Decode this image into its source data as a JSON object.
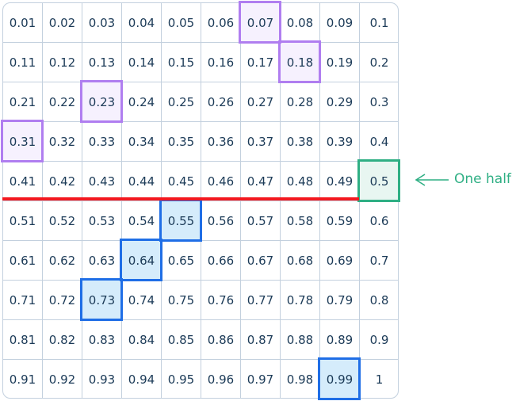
{
  "grid": {
    "rows": [
      [
        "0.01",
        "0.02",
        "0.03",
        "0.04",
        "0.05",
        "0.06",
        "0.07",
        "0.08",
        "0.09",
        "0.1"
      ],
      [
        "0.11",
        "0.12",
        "0.13",
        "0.14",
        "0.15",
        "0.16",
        "0.17",
        "0.18",
        "0.19",
        "0.2"
      ],
      [
        "0.21",
        "0.22",
        "0.23",
        "0.24",
        "0.25",
        "0.26",
        "0.27",
        "0.28",
        "0.29",
        "0.3"
      ],
      [
        "0.31",
        "0.32",
        "0.33",
        "0.34",
        "0.35",
        "0.36",
        "0.37",
        "0.38",
        "0.39",
        "0.4"
      ],
      [
        "0.41",
        "0.42",
        "0.43",
        "0.44",
        "0.45",
        "0.46",
        "0.47",
        "0.48",
        "0.49",
        "0.5"
      ],
      [
        "0.51",
        "0.52",
        "0.53",
        "0.54",
        "0.55",
        "0.56",
        "0.57",
        "0.58",
        "0.59",
        "0.6"
      ],
      [
        "0.61",
        "0.62",
        "0.63",
        "0.64",
        "0.65",
        "0.66",
        "0.67",
        "0.68",
        "0.69",
        "0.7"
      ],
      [
        "0.71",
        "0.72",
        "0.73",
        "0.74",
        "0.75",
        "0.76",
        "0.77",
        "0.78",
        "0.79",
        "0.8"
      ],
      [
        "0.81",
        "0.82",
        "0.83",
        "0.84",
        "0.85",
        "0.86",
        "0.87",
        "0.88",
        "0.89",
        "0.9"
      ],
      [
        "0.91",
        "0.92",
        "0.93",
        "0.94",
        "0.95",
        "0.96",
        "0.97",
        "0.98",
        "0.99",
        "1"
      ]
    ],
    "highlights": [
      {
        "value": "0.07",
        "group": "purple"
      },
      {
        "value": "0.18",
        "group": "purple"
      },
      {
        "value": "0.23",
        "group": "purple"
      },
      {
        "value": "0.31",
        "group": "purple"
      },
      {
        "value": "0.5",
        "group": "green"
      },
      {
        "value": "0.55",
        "group": "blue"
      },
      {
        "value": "0.64",
        "group": "blue"
      },
      {
        "value": "0.73",
        "group": "blue"
      },
      {
        "value": "0.99",
        "group": "blue"
      }
    ]
  },
  "colors": {
    "purple": {
      "border": "#b07ef0",
      "fill": "#f6f1fe"
    },
    "green": {
      "border": "#2faf84",
      "fill": "#e8f6f1"
    },
    "blue": {
      "border": "#1f6ee6",
      "fill": "#d5ecfb"
    },
    "half_line": "#f3181f"
  },
  "annotation": {
    "label": "One half"
  }
}
